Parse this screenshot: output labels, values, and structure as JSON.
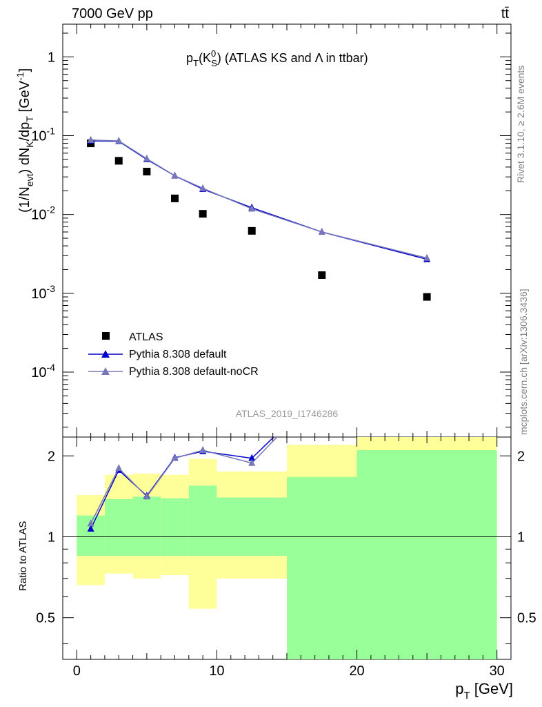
{
  "header": {
    "energy": "7000 GeV pp",
    "process": "tt̄"
  },
  "side_labels": {
    "rivet": "Rivet 3.1.10, ≥ 2.6M events",
    "mcplots": "mcplots.cern.ch [arXiv:1306.3436]"
  },
  "analysis_id": "ATLAS_2019_I1746286",
  "colors": {
    "data": "#000000",
    "default": "#0000cc",
    "noCR": "#7777bb",
    "band_inner": "#99ff99",
    "band_outer": "#ffff99"
  },
  "chart_data": [
    {
      "type": "scatter",
      "title": "p_T(K_S^0) (ATLAS KS and Λ in ttbar)",
      "xlabel": "p_T [GeV]",
      "ylabel": "(1/N_evt) dN_K/dp_T [GeV^-1]",
      "yscale": "log",
      "xlim": [
        -1,
        31
      ],
      "ylim": [
        1.5e-05,
        2.6
      ],
      "ytick_labels": [
        "1",
        "10^-1",
        "10^-2",
        "10^-3",
        "10^-4"
      ],
      "legend_position": "bottom-left",
      "series": [
        {
          "name": "ATLAS",
          "style": "marker-square",
          "color": "#000000",
          "x": [
            1,
            3,
            5,
            7,
            9,
            12.5,
            17.5,
            25
          ],
          "y": [
            0.08,
            0.048,
            0.035,
            0.016,
            0.0102,
            0.0062,
            0.0017,
            0.0009
          ]
        },
        {
          "name": "Pythia 8.308 default",
          "style": "line-triangle",
          "color": "#0000cc",
          "x": [
            1,
            3,
            5,
            7,
            9,
            12.5,
            17.5,
            25
          ],
          "y": [
            0.086,
            0.085,
            0.05,
            0.031,
            0.021,
            0.0122,
            0.006,
            0.0027
          ]
        },
        {
          "name": "Pythia 8.308 default-noCR",
          "style": "line-triangle",
          "color": "#7777bb",
          "x": [
            1,
            3,
            5,
            7,
            9,
            12.5,
            17.5,
            25
          ],
          "y": [
            0.088,
            0.086,
            0.051,
            0.031,
            0.0215,
            0.0118,
            0.006,
            0.0028
          ]
        }
      ]
    },
    {
      "type": "line",
      "ylabel": "Ratio to ATLAS",
      "xlabel": "p_T [GeV]",
      "yscale": "log",
      "xlim": [
        -1,
        31
      ],
      "ylim": [
        0.35,
        2.35
      ],
      "xtick_labels": [
        "0",
        "10",
        "20",
        "30"
      ],
      "ytick_labels": [
        "0.5",
        "1",
        "2"
      ],
      "bands": {
        "edges": [
          0,
          2,
          4,
          6,
          8,
          10,
          15,
          20,
          30
        ],
        "inner_low": [
          0.85,
          0.85,
          0.85,
          0.85,
          0.85,
          0.85,
          0.35,
          0.35
        ],
        "inner_high": [
          1.2,
          1.38,
          1.41,
          1.39,
          1.55,
          1.4,
          1.67,
          2.1
        ],
        "outer_low": [
          0.66,
          0.73,
          0.7,
          0.72,
          0.54,
          0.7,
          0.35,
          0.35
        ],
        "outer_high": [
          1.43,
          1.7,
          1.72,
          1.7,
          1.95,
          1.75,
          2.2,
          2.35
        ]
      },
      "series": [
        {
          "name": "Pythia 8.308 default",
          "color": "#0000cc",
          "x": [
            1,
            3,
            5,
            7,
            9,
            12.5,
            17.5
          ],
          "y": [
            1.07,
            1.77,
            1.42,
            1.97,
            2.08,
            1.96,
            3.5
          ]
        },
        {
          "name": "Pythia 8.308 default-noCR",
          "color": "#7777bb",
          "x": [
            1,
            3,
            5,
            7,
            9,
            12.5,
            17.5
          ],
          "y": [
            1.12,
            1.8,
            1.41,
            1.96,
            2.1,
            1.88,
            3.5
          ]
        }
      ]
    }
  ]
}
